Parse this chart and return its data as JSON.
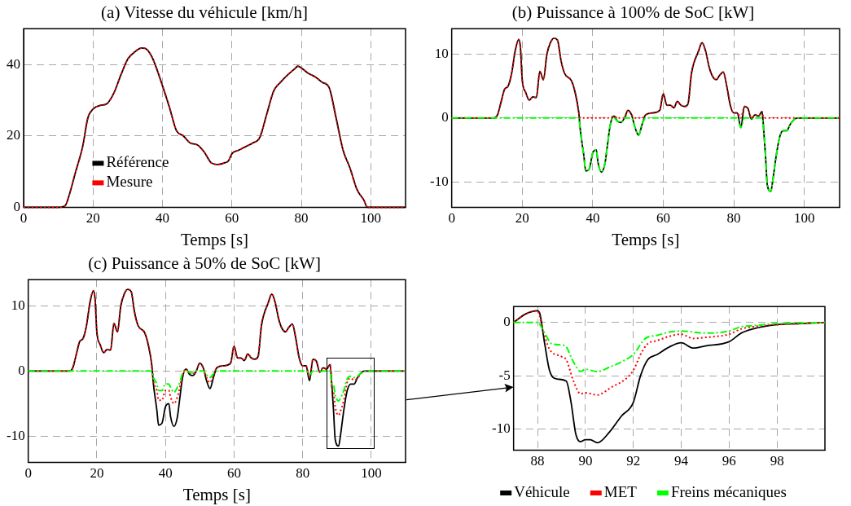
{
  "chart_data": [
    {
      "type": "line",
      "title": "(a) Vitesse du véhicule [km/h]",
      "xlabel": "Temps [s]",
      "xlim": [
        0,
        110
      ],
      "xticks": [
        0,
        20,
        40,
        60,
        80,
        100
      ],
      "ylim": [
        0,
        50
      ],
      "yticks": [
        0,
        20,
        40
      ],
      "grid": true,
      "legend": "bottom left",
      "x": [
        0,
        10,
        12,
        13,
        15,
        17,
        18.5,
        20,
        22,
        24,
        26,
        28,
        30,
        32,
        34,
        35,
        37,
        40,
        42,
        44,
        46,
        48,
        50,
        52,
        54,
        56,
        58,
        59,
        60,
        62,
        64,
        66,
        68,
        70,
        72,
        74,
        76,
        78,
        79,
        80,
        82,
        84,
        86,
        88,
        90,
        92,
        94,
        96,
        98,
        99,
        100,
        110
      ],
      "series": [
        {
          "name": "Référence",
          "color": "#000000",
          "line_style": "solid",
          "values": [
            0,
            0,
            0.5,
            3,
            10,
            17,
            25,
            27.5,
            28.5,
            29,
            32,
            37,
            41.5,
            43.5,
            44.6,
            44.5,
            42,
            34,
            28,
            21.5,
            20,
            18,
            17.5,
            15.5,
            12.5,
            12,
            12.5,
            13,
            15,
            16,
            17,
            18,
            19.5,
            26,
            32.5,
            35,
            37,
            38.7,
            39.5,
            39,
            37.5,
            36.5,
            35,
            33.5,
            25,
            16,
            11,
            5,
            2,
            0,
            0,
            0
          ]
        },
        {
          "name": "Mesure",
          "color": "#ff0000",
          "line_style": "dotted",
          "values": [
            0,
            0,
            0.5,
            3,
            10,
            17,
            25,
            27.5,
            28.5,
            29,
            32,
            37,
            41.5,
            43.5,
            44.6,
            44.5,
            42,
            34,
            28,
            21.5,
            20,
            18,
            17.5,
            15.5,
            12.5,
            12,
            12.5,
            13,
            15,
            16,
            17,
            18,
            19.5,
            26,
            32.5,
            35,
            37,
            38.7,
            39.5,
            39,
            37.5,
            36.5,
            35,
            33.5,
            25,
            16,
            11,
            5,
            2,
            0,
            0,
            0
          ]
        }
      ]
    },
    {
      "type": "line",
      "title": "(b) Puissance à 100% de SoC [kW]",
      "xlabel": "Temps [s]",
      "xlim": [
        0,
        110
      ],
      "xticks": [
        0,
        20,
        40,
        60,
        80,
        100
      ],
      "ylim": [
        -14,
        14
      ],
      "yticks": [
        -10,
        0,
        10
      ],
      "grid": true,
      "x": [
        0,
        12,
        13,
        14,
        15,
        16,
        17,
        18,
        19,
        19.5,
        20,
        21,
        22,
        23,
        24,
        25,
        26,
        27,
        28,
        29,
        30,
        31,
        32,
        34,
        35,
        36,
        36.5,
        37.5,
        38,
        39,
        40,
        41,
        41.5,
        42.5,
        43.5,
        44,
        45,
        46,
        47,
        48,
        49,
        50,
        51,
        52,
        53,
        54,
        55,
        57,
        59,
        60,
        61,
        62,
        63,
        64,
        65,
        66,
        67,
        68,
        70,
        71,
        72,
        73,
        74,
        75,
        76,
        77,
        78,
        79,
        80,
        81,
        82,
        83,
        84,
        85,
        86,
        87,
        88,
        88.5,
        89,
        89.5,
        90.5,
        91,
        92,
        93,
        94,
        95,
        96,
        97,
        98,
        110
      ],
      "series": [
        {
          "color": "#000000",
          "line_style": "solid",
          "values": [
            0,
            0,
            0.5,
            2.5,
            4.5,
            5,
            7,
            10.5,
            12.3,
            11,
            6,
            4,
            2.8,
            3.3,
            3.2,
            7.3,
            6,
            10,
            11.8,
            12.5,
            12.2,
            9,
            7,
            5.8,
            4,
            1,
            -2,
            -6,
            -8.3,
            -8,
            -5.5,
            -5,
            -7,
            -8.5,
            -7,
            -5,
            -1,
            0.3,
            -0.5,
            -0.7,
            0,
            1.2,
            0.5,
            -1.5,
            -2.7,
            -1,
            0.5,
            0.8,
            1.2,
            3.8,
            2,
            2,
            1.6,
            2.6,
            2,
            1.8,
            2.2,
            7,
            10.5,
            11.8,
            10.5,
            8,
            6.5,
            6,
            6.7,
            7.2,
            5,
            2,
            0.8,
            0.8,
            -1.5,
            1.8,
            1.5,
            -0.2,
            0.5,
            0.3,
            1,
            -2,
            -6,
            -10.5,
            -11.5,
            -10,
            -6,
            -3,
            -2,
            -2,
            -1,
            -0.3,
            0,
            0
          ]
        },
        {
          "color": "#ff0000",
          "line_style": "dotted",
          "values": [
            0,
            0,
            0.5,
            2.5,
            4.5,
            5,
            7,
            10.5,
            12.3,
            11,
            6,
            4,
            2.8,
            3.3,
            3.2,
            7.3,
            6,
            10,
            11.8,
            12.5,
            12.2,
            9,
            7,
            5.8,
            4,
            1,
            0,
            0,
            0,
            0,
            0,
            0,
            0,
            0,
            0,
            0,
            0,
            0.3,
            0,
            0,
            0,
            1.2,
            0.5,
            0,
            0,
            0,
            0.5,
            0.8,
            1.2,
            3.8,
            2,
            2,
            1.6,
            2.6,
            2,
            1.8,
            2.2,
            7,
            10.5,
            11.8,
            10.5,
            8,
            6.5,
            6,
            6.7,
            7.2,
            5,
            2,
            0.8,
            0.8,
            0,
            1.8,
            1.5,
            0,
            0.5,
            0.3,
            1,
            0,
            0,
            0,
            0,
            0,
            0,
            0,
            0,
            0,
            0,
            0,
            0,
            0
          ]
        },
        {
          "color": "#00ff00",
          "line_style": "dashed",
          "values": [
            0,
            0,
            0,
            0,
            0,
            0,
            0,
            0,
            0,
            0,
            0,
            0,
            0,
            0,
            0,
            0,
            0,
            0,
            0,
            0,
            0,
            0,
            0,
            0,
            0,
            0,
            -2,
            -6,
            -8.3,
            -8,
            -5.5,
            -5,
            -7,
            -8.5,
            -7,
            -5,
            -1,
            0,
            -0.5,
            -0.7,
            0,
            0,
            0,
            -1.5,
            -2.7,
            -1,
            0,
            0,
            0,
            0,
            0,
            0,
            0,
            0,
            0,
            0,
            0,
            0,
            0,
            0,
            0,
            0,
            0,
            0,
            0,
            0,
            0,
            0,
            0,
            0,
            -1.5,
            0,
            0,
            -0.2,
            0,
            0,
            0,
            -2,
            -6,
            -10.5,
            -11.5,
            -10,
            -6,
            -3,
            -2,
            -2,
            -1,
            -0.3,
            0,
            0
          ]
        }
      ]
    },
    {
      "type": "line",
      "title": "(c) Puissance à 50% de SoC [kW]",
      "xlabel": "Temps [s]",
      "xlim": [
        0,
        110
      ],
      "xticks": [
        0,
        20,
        40,
        60,
        80,
        100
      ],
      "ylim": [
        -14,
        14
      ],
      "yticks": [
        -10,
        0,
        10
      ],
      "grid": true,
      "x": [
        0,
        12,
        13,
        14,
        15,
        16,
        17,
        18,
        19,
        19.5,
        20,
        21,
        22,
        23,
        24,
        25,
        26,
        27,
        28,
        29,
        30,
        31,
        32,
        34,
        35,
        36,
        36.5,
        37.5,
        38,
        39,
        40,
        41,
        41.5,
        42.5,
        43.5,
        44,
        45,
        46,
        47,
        48,
        49,
        50,
        51,
        52,
        53,
        54,
        55,
        57,
        59,
        60,
        61,
        62,
        63,
        64,
        65,
        66,
        67,
        68,
        70,
        71,
        72,
        73,
        74,
        75,
        76,
        77,
        78,
        79,
        80,
        81,
        82,
        83,
        84,
        85,
        86,
        87,
        88,
        88.5,
        89,
        89.5,
        90.5,
        91,
        92,
        93,
        94,
        95,
        96,
        97,
        98,
        110
      ],
      "series": [
        {
          "color": "#000000",
          "line_style": "solid",
          "values": [
            0,
            0,
            0.5,
            2.5,
            4.5,
            5,
            7,
            10.5,
            12.3,
            11,
            6,
            4,
            2.8,
            3.3,
            3.2,
            7.3,
            6,
            10,
            11.8,
            12.5,
            12.2,
            9,
            7,
            5.8,
            4,
            1,
            -2,
            -6,
            -8.3,
            -8,
            -5.5,
            -5,
            -7,
            -8.5,
            -7,
            -5,
            -1,
            0.3,
            -0.5,
            -0.7,
            0,
            1.2,
            0.5,
            -1.5,
            -2.7,
            -1,
            0.5,
            0.8,
            1.2,
            3.8,
            2,
            2,
            1.6,
            2.6,
            2,
            1.8,
            2.2,
            7,
            10.5,
            11.8,
            10.5,
            8,
            6.5,
            6,
            6.7,
            7.2,
            5,
            2,
            0.8,
            0.8,
            -1.5,
            1.8,
            1.5,
            -0.2,
            0.5,
            0.3,
            1,
            -2,
            -6,
            -10.5,
            -11.5,
            -10,
            -6,
            -3,
            -2,
            -2,
            -1,
            -0.3,
            0,
            0
          ]
        },
        {
          "color": "#ff0000",
          "line_style": "dotted",
          "values": [
            0,
            0,
            0.5,
            2.5,
            4.5,
            5,
            7,
            10.5,
            12.3,
            11,
            6,
            4,
            2.8,
            3.3,
            3.2,
            7.3,
            6,
            10,
            11.8,
            12.5,
            12.2,
            9,
            7,
            5.8,
            4,
            1,
            -1.5,
            -3,
            -4.5,
            -4.5,
            -3,
            -3,
            -4,
            -5,
            -4,
            -3,
            -0.6,
            0.3,
            -0.3,
            -0.4,
            0,
            1.2,
            0.5,
            -1,
            -1.8,
            -0.6,
            0.5,
            0.8,
            1.2,
            3.8,
            2,
            2,
            1.6,
            2.6,
            2,
            1.8,
            2.2,
            7,
            10.5,
            11.8,
            10.5,
            8,
            6.5,
            6,
            6.7,
            7.2,
            5,
            2,
            0.8,
            0.8,
            -1,
            1.8,
            1.5,
            -0.1,
            0.5,
            0.3,
            1,
            -2.5,
            -3.2,
            -5.5,
            -6.8,
            -6.2,
            -4.5,
            -1.7,
            -1.1,
            -1.4,
            -1.1,
            -0.4,
            0,
            0
          ]
        },
        {
          "color": "#00ff00",
          "line_style": "dashed",
          "values": [
            0,
            0,
            0,
            0,
            0,
            0,
            0,
            0,
            0,
            0,
            0,
            0,
            0,
            0,
            0,
            0,
            0,
            0,
            0,
            0,
            0,
            0,
            0,
            0,
            0,
            0,
            -1,
            -2,
            -3,
            -3,
            -2,
            -2,
            -2.5,
            -3.3,
            -2.5,
            -2,
            -0.4,
            0,
            -0.2,
            -0.3,
            0,
            0,
            0,
            -0.6,
            -1,
            -0.4,
            0,
            0,
            0,
            0,
            0,
            0,
            0,
            0,
            0,
            0,
            0,
            0,
            0,
            0,
            0,
            0,
            0,
            0,
            0,
            0,
            0,
            0,
            0,
            0,
            -0.6,
            0,
            0,
            -0.1,
            0,
            0,
            0,
            -2,
            -2.1,
            -3.7,
            -4.6,
            -4.2,
            -3,
            -1.2,
            -0.8,
            -1,
            -0.8,
            -0.3,
            0,
            0
          ]
        }
      ]
    },
    {
      "type": "line",
      "xlim": [
        87,
        100
      ],
      "xticks": [
        88,
        90,
        92,
        94,
        96,
        98
      ],
      "ylim": [
        -12,
        1.5
      ],
      "yticks": [
        -10,
        -5,
        0
      ],
      "grid": true,
      "legend": "bottom",
      "series": [
        {
          "name": "Véhicule",
          "color": "#000000",
          "line_style": "solid",
          "x": [
            87,
            87.5,
            88,
            88.1,
            88.3,
            88.5,
            88.8,
            89.2,
            89.4,
            89.6,
            89.8,
            90,
            90.2,
            90.5,
            91,
            91.5,
            92,
            92.3,
            92.6,
            93,
            93.5,
            94,
            94.5,
            95,
            96,
            96.5,
            97,
            98,
            99,
            100
          ],
          "values": [
            0,
            0.8,
            1.1,
            0.8,
            -2,
            -4.5,
            -5.3,
            -5.5,
            -7.5,
            -10.5,
            -11.2,
            -11,
            -11,
            -11.3,
            -10.3,
            -8.8,
            -7.5,
            -5,
            -3.5,
            -3,
            -2.3,
            -1.9,
            -2.4,
            -2.2,
            -1.8,
            -1,
            -0.6,
            -0.2,
            -0.1,
            0
          ]
        },
        {
          "name": "MET",
          "color": "#ff0000",
          "line_style": "dotted",
          "x": [
            87,
            87.5,
            88,
            88.2,
            88.5,
            89,
            89.2,
            89.5,
            89.8,
            90,
            90.5,
            91,
            92,
            92.3,
            92.6,
            93,
            93.5,
            94,
            94.5,
            95,
            96,
            96.5,
            97,
            98,
            99,
            100
          ],
          "values": [
            0,
            0.8,
            1.1,
            -0.5,
            -2.5,
            -3.2,
            -3.5,
            -5.5,
            -6.7,
            -6.6,
            -6.8,
            -6.2,
            -4.5,
            -3,
            -2,
            -1.7,
            -1.3,
            -1.1,
            -1.5,
            -1.4,
            -1.1,
            -0.6,
            -0.4,
            -0.2,
            -0.1,
            0
          ]
        },
        {
          "name": "Freins mécaniques",
          "color": "#00ff00",
          "line_style": "dashed",
          "x": [
            87,
            88,
            88.3,
            88.6,
            89,
            89.2,
            89.5,
            89.8,
            90,
            90.5,
            91,
            91.5,
            92,
            92.5,
            93,
            93.5,
            94,
            95,
            96,
            96.5,
            97,
            98,
            100
          ],
          "values": [
            0,
            0,
            -1,
            -2,
            -2.1,
            -2.3,
            -3.7,
            -4.6,
            -4.4,
            -4.6,
            -4.2,
            -3.7,
            -3,
            -1.5,
            -1.2,
            -0.9,
            -0.8,
            -1,
            -0.8,
            -0.4,
            -0.3,
            -0.1,
            0
          ]
        }
      ]
    }
  ]
}
